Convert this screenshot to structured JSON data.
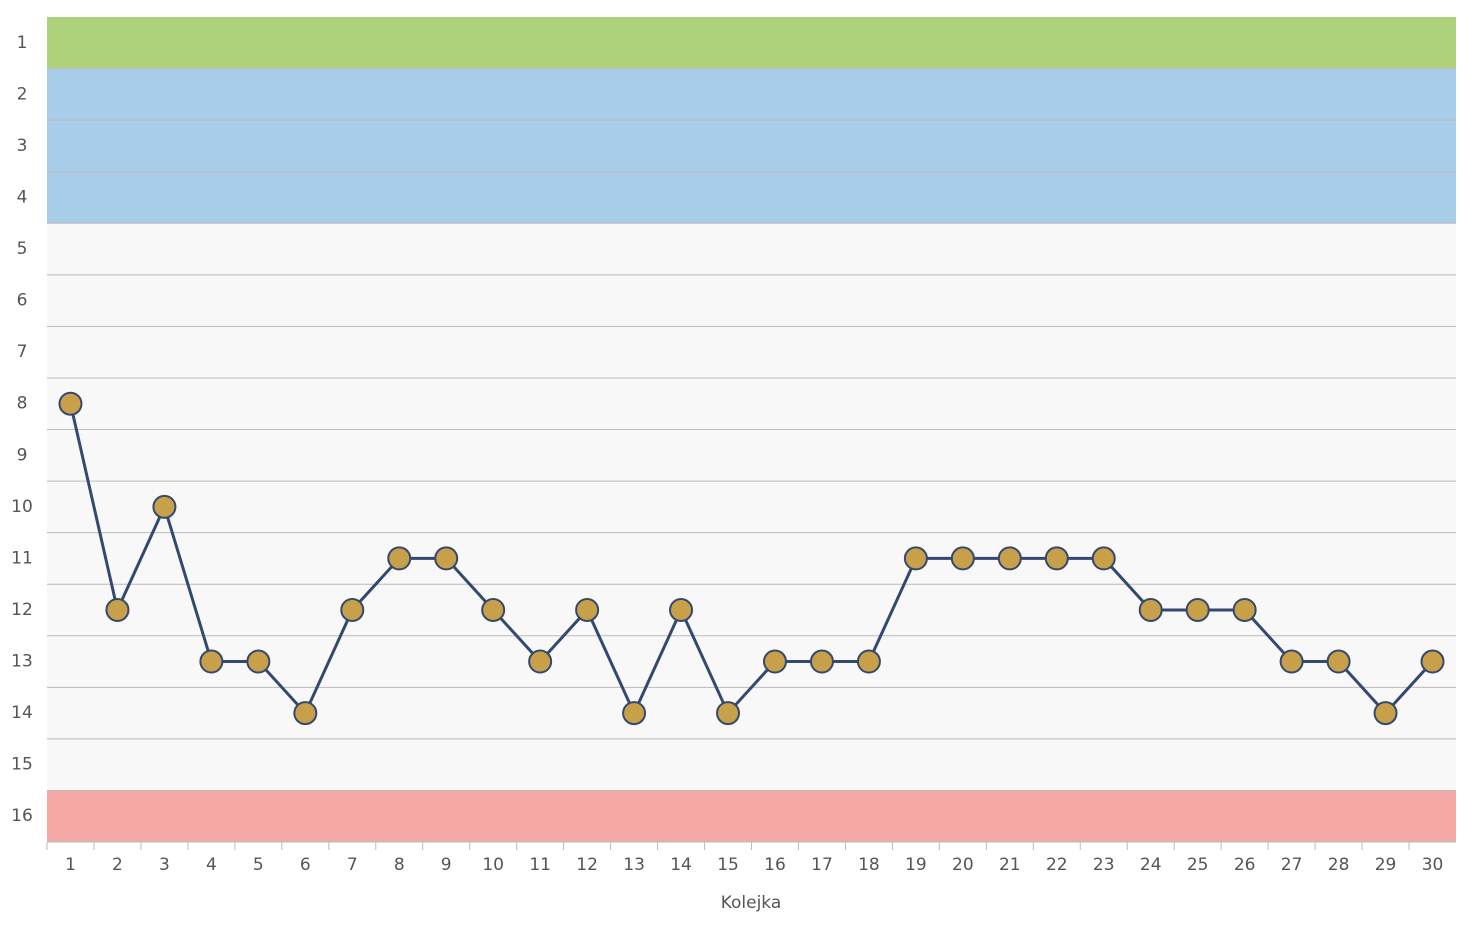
{
  "chart_data": {
    "type": "line",
    "x_label": "Kolejka",
    "x": [
      1,
      2,
      3,
      4,
      5,
      6,
      7,
      8,
      9,
      10,
      11,
      12,
      13,
      14,
      15,
      16,
      17,
      18,
      19,
      20,
      21,
      22,
      23,
      24,
      25,
      26,
      27,
      28,
      29,
      30
    ],
    "series": [
      {
        "color": "#34496e",
        "marker_color": "#c8a04a",
        "values": [
          8,
          12,
          10,
          13,
          13,
          14,
          12,
          11,
          11,
          12,
          13,
          12,
          14,
          12,
          14,
          13,
          13,
          13,
          11,
          11,
          11,
          11,
          11,
          12,
          12,
          12,
          13,
          13,
          14,
          13
        ]
      }
    ],
    "xlim": [
      0.5,
      30.5
    ],
    "xticks": [
      1,
      2,
      3,
      4,
      5,
      6,
      7,
      8,
      9,
      10,
      11,
      12,
      13,
      14,
      15,
      16,
      17,
      18,
      19,
      20,
      21,
      22,
      23,
      24,
      25,
      26,
      27,
      28,
      29,
      30
    ],
    "ylim": [
      16.5,
      0.5
    ],
    "yticks": [
      1,
      2,
      3,
      4,
      5,
      6,
      7,
      8,
      9,
      10,
      11,
      12,
      13,
      14,
      15,
      16
    ],
    "bands": [
      {
        "from": 1,
        "to": 1,
        "color": "#aed27c"
      },
      {
        "from": 2,
        "to": 4,
        "color": "#a8cde8"
      },
      {
        "from": 16,
        "to": 16,
        "color": "#f4a8a4"
      }
    ],
    "grid": true
  }
}
